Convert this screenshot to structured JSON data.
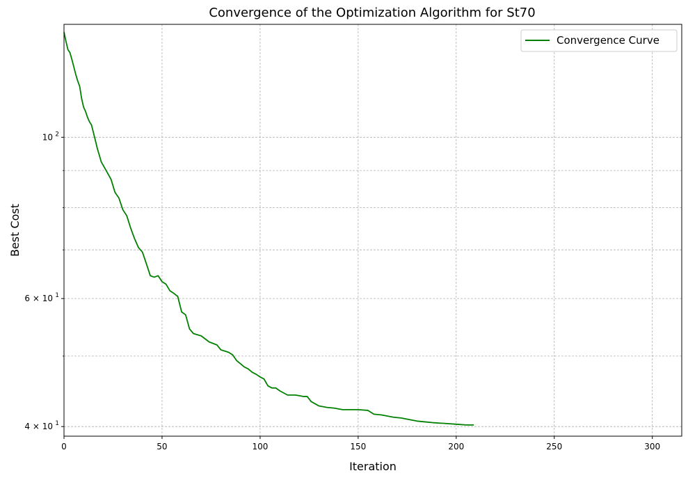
{
  "chart_data": {
    "type": "line",
    "title": "Convergence of the Optimization Algorithm for St70",
    "xlabel": "Iteration",
    "ylabel": "Best Cost",
    "xlim": [
      0,
      315
    ],
    "ylim": [
      38.8,
      143
    ],
    "yscale": "log",
    "grid": true,
    "legend_position": "top-right",
    "x_ticks": [
      0,
      50,
      100,
      150,
      200,
      250,
      300
    ],
    "y_ticks_major": [
      {
        "value": 40,
        "label": "4 × 10",
        "exp": "1"
      },
      {
        "value": 60,
        "label": "6 × 10",
        "exp": "1"
      },
      {
        "value": 100,
        "label": "10",
        "exp": "2"
      }
    ],
    "y_ticks_minor": [
      50,
      70,
      80,
      90
    ],
    "series": [
      {
        "name": "Convergence Curve",
        "color": "#008000",
        "x": [
          0,
          1,
          2,
          3,
          4,
          5,
          6,
          7,
          8,
          9,
          10,
          11,
          12,
          13,
          14,
          15,
          16,
          17,
          18,
          19,
          20,
          22,
          24,
          26,
          28,
          30,
          32,
          34,
          36,
          38,
          40,
          42,
          44,
          46,
          48,
          50,
          52,
          54,
          56,
          58,
          60,
          62,
          64,
          66,
          70,
          74,
          78,
          80,
          84,
          86,
          88,
          90,
          92,
          94,
          96,
          98,
          100,
          102,
          104,
          106,
          108,
          110,
          114,
          118,
          122,
          124,
          126,
          130,
          134,
          138,
          142,
          150,
          155,
          158,
          162,
          168,
          172,
          176,
          180,
          184,
          188,
          194,
          200,
          205,
          209
        ],
        "y": [
          139.5,
          135.5,
          132,
          130.8,
          128,
          125,
          122,
          119.5,
          117.5,
          113,
          110,
          108.5,
          106.5,
          105,
          104,
          101.5,
          99,
          96.5,
          94.5,
          92.5,
          91.5,
          89.5,
          87.5,
          84,
          82.5,
          79.5,
          78,
          75,
          72.5,
          70.5,
          69.5,
          67,
          64.5,
          64.2,
          64.5,
          63.3,
          62.8,
          61.5,
          61,
          60.4,
          57.5,
          57,
          54.5,
          53.7,
          53.3,
          52.3,
          51.8,
          51,
          50.6,
          50.2,
          49.3,
          48.8,
          48.3,
          48,
          47.5,
          47.2,
          46.8,
          46.5,
          45.5,
          45.2,
          45.2,
          44.8,
          44.2,
          44.2,
          44,
          44,
          43.3,
          42.7,
          42.5,
          42.4,
          42.2,
          42.2,
          42.1,
          41.6,
          41.5,
          41.2,
          41.1,
          40.9,
          40.7,
          40.6,
          40.5,
          40.4,
          40.3,
          40.2,
          40.2
        ]
      }
    ]
  }
}
